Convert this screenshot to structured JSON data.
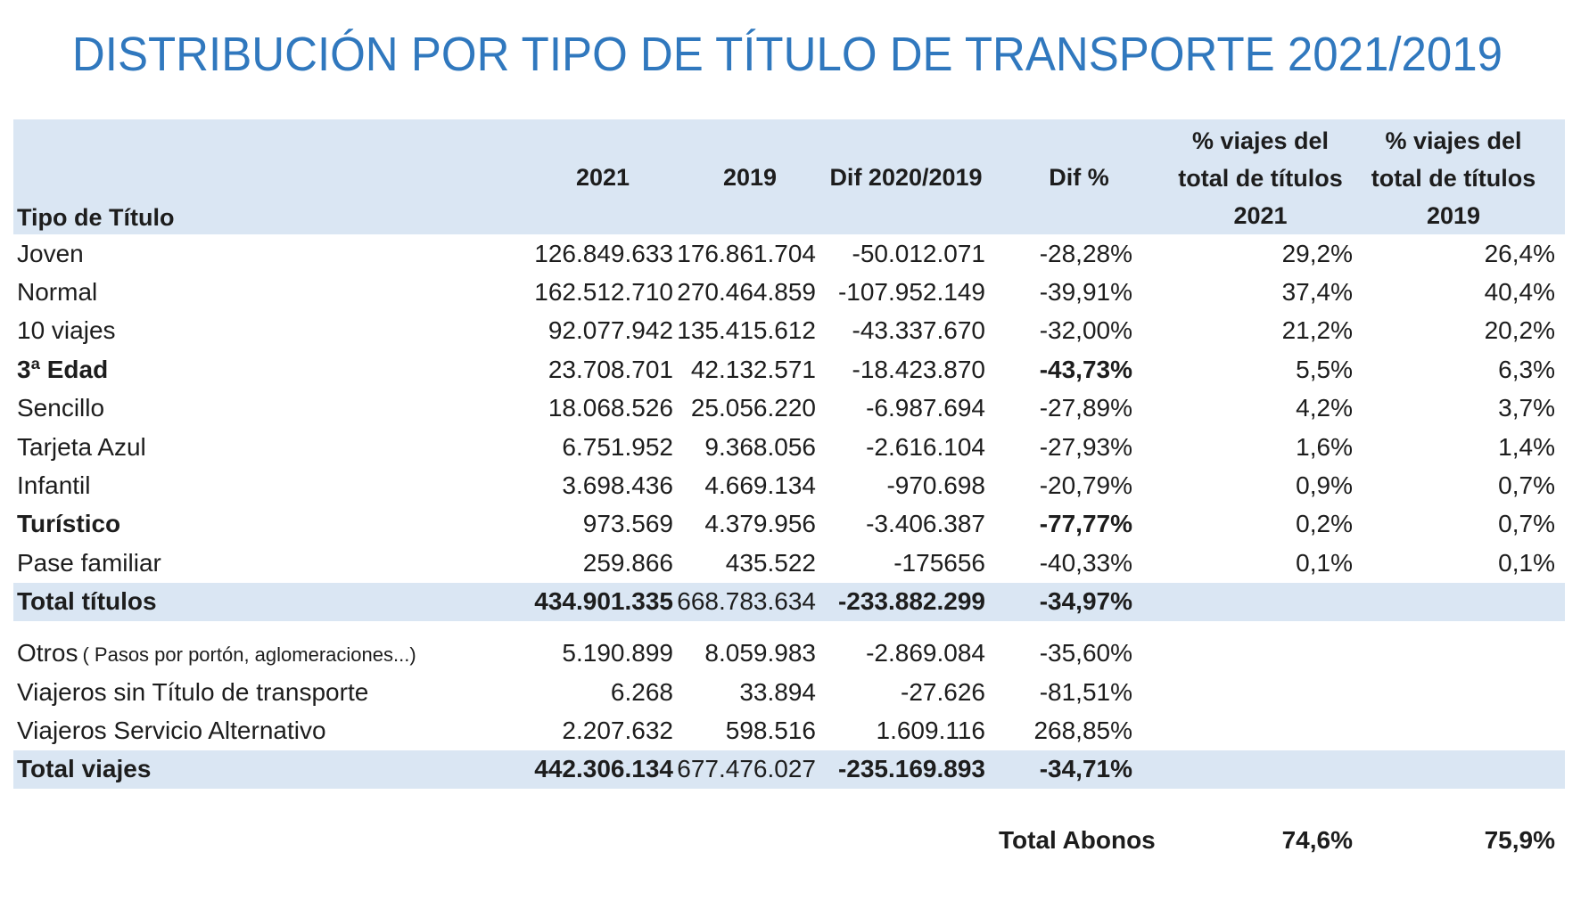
{
  "title": "DISTRIBUCIÓN POR TIPO DE TÍTULO DE TRANSPORTE 2021/2019",
  "colors": {
    "title_blue": "#3078BE",
    "band_blue": "#DAE6F3",
    "text": "#1D1D1D"
  },
  "table": {
    "header": {
      "row_label": "Tipo de Título",
      "c2021": "2021",
      "c2019": "2019",
      "dif": "Dif 2020/2019",
      "difpct": "Dif %",
      "pct2021_lines": [
        "% viajes del",
        "total de títulos",
        "2021"
      ],
      "pct2019_lines": [
        "% viajes del",
        "total de títulos",
        "2019"
      ]
    },
    "rows": [
      {
        "label": "Joven",
        "cells": [
          {
            "t": "126.849.633"
          },
          {
            "t": "176.861.704"
          },
          {
            "t": "-50.012.071"
          },
          {
            "t": "-28,28%"
          },
          {
            "t": "29,2%"
          },
          {
            "t": "26,4%"
          }
        ]
      },
      {
        "label": "Normal",
        "cells": [
          {
            "t": "162.512.710"
          },
          {
            "t": "270.464.859"
          },
          {
            "t": "-107.952.149"
          },
          {
            "t": "-39,91%"
          },
          {
            "t": "37,4%"
          },
          {
            "t": "40,4%"
          }
        ]
      },
      {
        "label": "10 viajes",
        "cells": [
          {
            "t": "92.077.942"
          },
          {
            "t": "135.415.612"
          },
          {
            "t": "-43.337.670"
          },
          {
            "t": "-32,00%"
          },
          {
            "t": "21,2%"
          },
          {
            "t": "20,2%"
          }
        ]
      },
      {
        "label": "3ª Edad",
        "bold_label": true,
        "cells": [
          {
            "t": "23.708.701"
          },
          {
            "t": "42.132.571"
          },
          {
            "t": "-18.423.870"
          },
          {
            "t": "-43,73%",
            "b": true
          },
          {
            "t": "5,5%"
          },
          {
            "t": "6,3%"
          }
        ]
      },
      {
        "label": "Sencillo",
        "cells": [
          {
            "t": "18.068.526"
          },
          {
            "t": "25.056.220"
          },
          {
            "t": "-6.987.694"
          },
          {
            "t": "-27,89%"
          },
          {
            "t": "4,2%"
          },
          {
            "t": "3,7%"
          }
        ]
      },
      {
        "label": "Tarjeta Azul",
        "cells": [
          {
            "t": "6.751.952"
          },
          {
            "t": "9.368.056"
          },
          {
            "t": "-2.616.104"
          },
          {
            "t": "-27,93%"
          },
          {
            "t": "1,6%"
          },
          {
            "t": "1,4%"
          }
        ]
      },
      {
        "label": "Infantil",
        "cells": [
          {
            "t": "3.698.436"
          },
          {
            "t": "4.669.134"
          },
          {
            "t": "-970.698"
          },
          {
            "t": "-20,79%"
          },
          {
            "t": "0,9%"
          },
          {
            "t": "0,7%"
          }
        ]
      },
      {
        "label": "Turístico",
        "bold_label": true,
        "cells": [
          {
            "t": "973.569"
          },
          {
            "t": "4.379.956"
          },
          {
            "t": "-3.406.387"
          },
          {
            "t": "-77,77%",
            "b": true
          },
          {
            "t": "0,2%"
          },
          {
            "t": "0,7%"
          }
        ]
      },
      {
        "label": "Pase familiar",
        "cells": [
          {
            "t": "259.866"
          },
          {
            "t": "435.522"
          },
          {
            "t": "-175656"
          },
          {
            "t": "-40,33%"
          },
          {
            "t": "0,1%"
          },
          {
            "t": "0,1%"
          }
        ]
      },
      {
        "label": "Total títulos",
        "bold_label": true,
        "highlight": true,
        "cells": [
          {
            "t": "434.901.335",
            "b": true
          },
          {
            "t": "668.783.634"
          },
          {
            "t": "-233.882.299",
            "b": true
          },
          {
            "t": "-34,97%",
            "b": true
          },
          {
            "t": ""
          },
          {
            "t": ""
          }
        ]
      },
      {
        "label": "Otros",
        "sub": "( Pasos por portón, aglomeraciones...)",
        "gap_before": true,
        "cells": [
          {
            "t": "5.190.899"
          },
          {
            "t": "8.059.983"
          },
          {
            "t": "-2.869.084"
          },
          {
            "t": "-35,60%"
          },
          {
            "t": ""
          },
          {
            "t": ""
          }
        ]
      },
      {
        "label": "Viajeros sin Título de transporte",
        "cells": [
          {
            "t": "6.268"
          },
          {
            "t": "33.894"
          },
          {
            "t": "-27.626"
          },
          {
            "t": "-81,51%"
          },
          {
            "t": ""
          },
          {
            "t": ""
          }
        ]
      },
      {
        "label": "Viajeros Servicio Alternativo",
        "cells": [
          {
            "t": "2.207.632"
          },
          {
            "t": "598.516"
          },
          {
            "t": "1.609.116"
          },
          {
            "t": "268,85%"
          },
          {
            "t": ""
          },
          {
            "t": ""
          }
        ]
      },
      {
        "label": "Total viajes",
        "bold_label": true,
        "highlight": true,
        "cells": [
          {
            "t": "442.306.134",
            "b": true
          },
          {
            "t": "677.476.027"
          },
          {
            "t": "-235.169.893",
            "b": true
          },
          {
            "t": "-34,71%",
            "b": true
          },
          {
            "t": ""
          },
          {
            "t": ""
          }
        ]
      }
    ],
    "footer": {
      "label": "Total Abonos",
      "pct2021": "74,6%",
      "pct2019": "75,9%"
    }
  },
  "chart_data": {
    "type": "table",
    "title": "DISTRIBUCIÓN POR TIPO DE TÍTULO DE TRANSPORTE 2021/2019",
    "columns": [
      "Tipo de Título",
      "2021",
      "2019",
      "Dif 2020/2019",
      "Dif %",
      "% viajes del total de títulos 2021",
      "% viajes del total de títulos 2019"
    ],
    "rows": [
      [
        "Joven",
        126849633,
        176861704,
        -50012071,
        "-28,28%",
        "29,2%",
        "26,4%"
      ],
      [
        "Normal",
        162512710,
        270464859,
        -107952149,
        "-39,91%",
        "37,4%",
        "40,4%"
      ],
      [
        "10 viajes",
        92077942,
        135415612,
        -43337670,
        "-32,00%",
        "21,2%",
        "20,2%"
      ],
      [
        "3ª Edad",
        23708701,
        42132571,
        -18423870,
        "-43,73%",
        "5,5%",
        "6,3%"
      ],
      [
        "Sencillo",
        18068526,
        25056220,
        -6987694,
        "-27,89%",
        "4,2%",
        "3,7%"
      ],
      [
        "Tarjeta Azul",
        6751952,
        9368056,
        -2616104,
        "-27,93%",
        "1,6%",
        "1,4%"
      ],
      [
        "Infantil",
        3698436,
        4669134,
        -970698,
        "-20,79%",
        "0,9%",
        "0,7%"
      ],
      [
        "Turístico",
        973569,
        4379956,
        -3406387,
        "-77,77%",
        "0,2%",
        "0,7%"
      ],
      [
        "Pase familiar",
        259866,
        435522,
        -175656,
        "-40,33%",
        "0,1%",
        "0,1%"
      ],
      [
        "Total títulos",
        434901335,
        668783634,
        -233882299,
        "-34,97%",
        "",
        ""
      ],
      [
        "Otros ( Pasos por portón, aglomeraciones...)",
        5190899,
        8059983,
        -2869084,
        "-35,60%",
        "",
        ""
      ],
      [
        "Viajeros sin Título de transporte",
        6268,
        33894,
        -27626,
        "-81,51%",
        "",
        ""
      ],
      [
        "Viajeros Servicio Alternativo",
        2207632,
        598516,
        1609116,
        "268,85%",
        "",
        ""
      ],
      [
        "Total viajes",
        442306134,
        677476027,
        -235169893,
        "-34,71%",
        "",
        ""
      ],
      [
        "Total Abonos",
        "",
        "",
        "",
        "",
        "74,6%",
        "75,9%"
      ]
    ]
  }
}
